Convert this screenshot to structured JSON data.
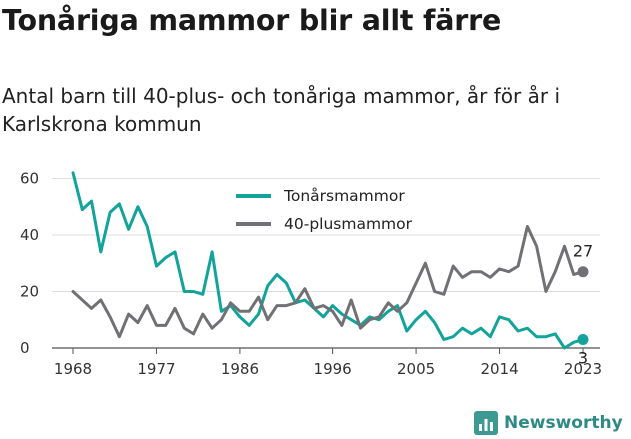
{
  "header": {
    "title": "Tonåriga mammor blir allt färre",
    "subtitle": "Antal barn till 40-plus- och tonåriga mammor, år för år i Karlskrona kommun"
  },
  "brand": {
    "name": "Newsworthy",
    "icon": "bar-chart-icon",
    "color": "#3c9a93"
  },
  "chart_data": {
    "type": "line",
    "title": "Tonåriga mammor blir allt färre",
    "subtitle": "Antal barn till 40-plus- och tonåriga mammor, år för år i Karlskrona kommun",
    "xlabel": "",
    "ylabel": "",
    "x": [
      1968,
      1969,
      1970,
      1971,
      1972,
      1973,
      1974,
      1975,
      1976,
      1977,
      1978,
      1979,
      1980,
      1981,
      1982,
      1983,
      1984,
      1985,
      1986,
      1987,
      1988,
      1989,
      1990,
      1991,
      1992,
      1993,
      1994,
      1995,
      1996,
      1997,
      1998,
      1999,
      2000,
      2001,
      2002,
      2003,
      2004,
      2005,
      2006,
      2007,
      2008,
      2009,
      2010,
      2011,
      2012,
      2013,
      2014,
      2015,
      2016,
      2017,
      2018,
      2019,
      2020,
      2021,
      2022,
      2023
    ],
    "xticks": [
      1968,
      1977,
      1986,
      1996,
      2005,
      2014,
      2023
    ],
    "yticks": [
      0,
      20,
      40,
      60
    ],
    "xlim": [
      1968,
      2023
    ],
    "ylim": [
      0,
      63
    ],
    "grid": "horizontal",
    "legend_position": "top-center",
    "series": [
      {
        "name": "Tonårsmammor",
        "color": "#12a39a",
        "values": [
          62,
          49,
          52,
          34,
          48,
          51,
          42,
          50,
          43,
          29,
          32,
          34,
          20,
          20,
          19,
          34,
          13,
          15,
          11,
          8,
          12,
          22,
          26,
          23,
          16,
          17,
          14,
          11,
          15,
          12,
          10,
          8,
          11,
          10,
          13,
          15,
          6,
          10,
          13,
          9,
          3,
          4,
          7,
          5,
          7,
          4,
          11,
          10,
          6,
          7,
          4,
          4,
          5,
          0,
          2,
          3
        ],
        "end_label": "3"
      },
      {
        "name": "40-plusmammor",
        "color": "#717075",
        "values": [
          20,
          17,
          14,
          17,
          11,
          4,
          12,
          9,
          15,
          8,
          8,
          14,
          7,
          5,
          12,
          7,
          10,
          16,
          13,
          13,
          18,
          10,
          15,
          15,
          16,
          21,
          14,
          15,
          13,
          8,
          17,
          7,
          10,
          11,
          16,
          13,
          16,
          23,
          30,
          20,
          19,
          29,
          25,
          27,
          27,
          25,
          28,
          27,
          29,
          43,
          36,
          20,
          27,
          36,
          26,
          27
        ],
        "end_label": "27"
      }
    ]
  }
}
